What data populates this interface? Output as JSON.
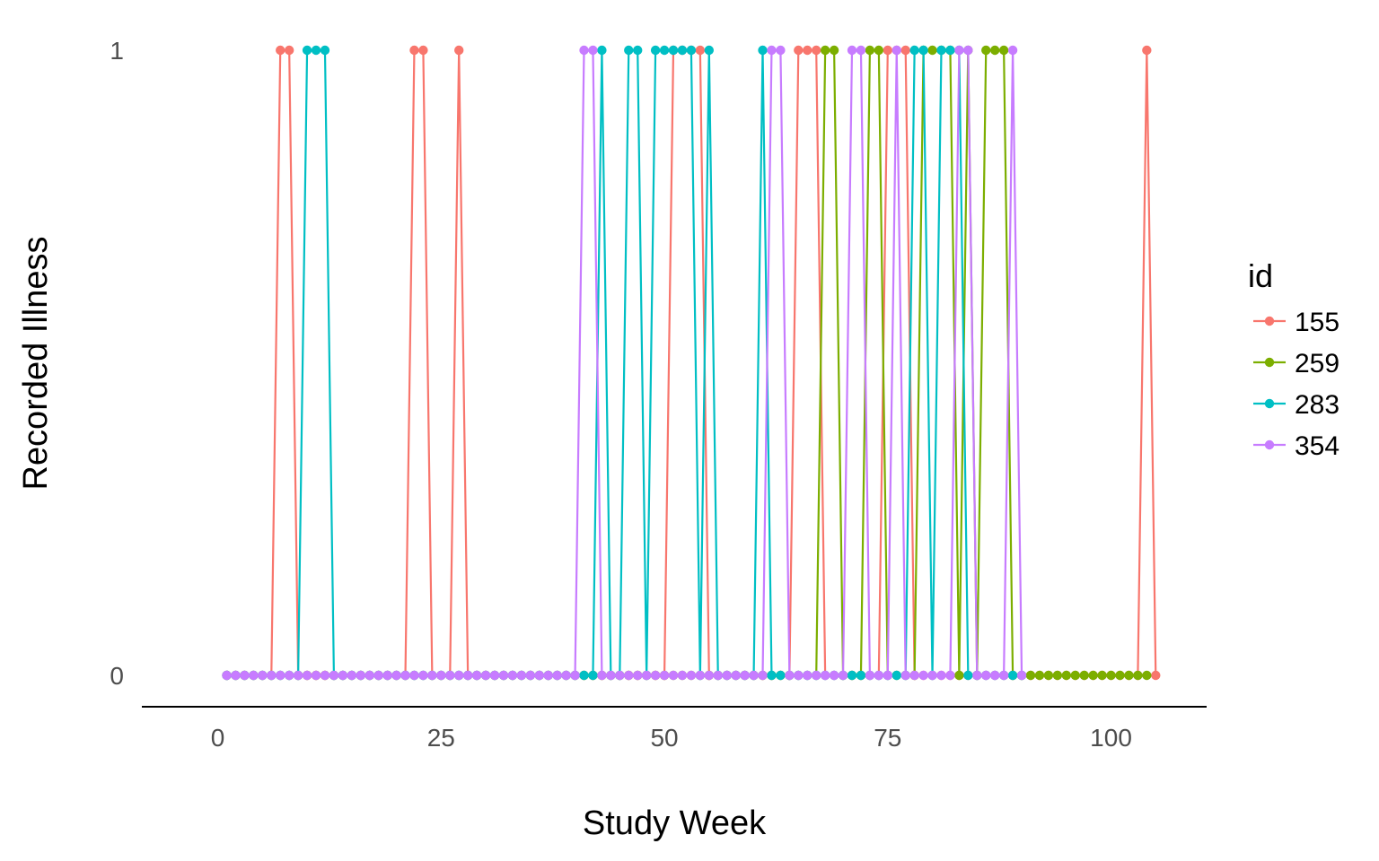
{
  "chart_data": {
    "type": "line",
    "title": "",
    "xlabel": "Study Week",
    "ylabel": "Recorded Illness",
    "xlim": [
      -8.5,
      110.7
    ],
    "ylim": [
      -0.05,
      1.0
    ],
    "x_ticks": [
      0,
      25,
      50,
      75,
      100
    ],
    "y_ticks": [
      0,
      1
    ],
    "grid": false,
    "legend": {
      "title": "id",
      "placement": "right"
    },
    "weeks_start": 1,
    "series": [
      {
        "name": "155",
        "color": "#F8766D",
        "values": [
          0,
          0,
          0,
          0,
          0,
          0,
          1,
          1,
          0,
          0,
          0,
          0,
          0,
          0,
          0,
          0,
          0,
          0,
          0,
          0,
          0,
          1,
          1,
          0,
          0,
          0,
          1,
          0,
          0,
          0,
          0,
          0,
          0,
          0,
          0,
          0,
          0,
          0,
          0,
          0,
          0,
          0,
          0,
          0,
          0,
          0,
          0,
          0,
          0,
          0,
          1,
          1,
          1,
          1,
          0,
          0,
          0,
          0,
          0,
          0,
          0,
          0,
          0,
          0,
          1,
          1,
          1,
          0,
          0,
          0,
          0,
          0,
          0,
          0,
          1,
          1,
          1,
          0,
          0,
          0,
          0,
          0,
          0,
          0,
          0,
          0,
          0,
          0,
          0,
          0,
          0,
          0,
          0,
          0,
          0,
          0,
          0,
          0,
          0,
          0,
          0,
          0,
          0,
          1,
          0
        ]
      },
      {
        "name": "259",
        "color": "#7CAE00",
        "values": [
          0,
          0,
          0,
          0,
          0,
          0,
          0,
          0,
          0,
          0,
          0,
          0,
          0,
          0,
          0,
          0,
          0,
          0,
          0,
          0,
          0,
          0,
          0,
          0,
          0,
          0,
          0,
          0,
          0,
          0,
          0,
          0,
          0,
          0,
          0,
          0,
          0,
          0,
          0,
          0,
          0,
          0,
          0,
          0,
          0,
          0,
          0,
          0,
          0,
          0,
          0,
          0,
          0,
          0,
          0,
          0,
          0,
          0,
          0,
          0,
          0,
          0,
          0,
          0,
          0,
          0,
          0,
          1,
          1,
          0,
          0,
          0,
          1,
          1,
          0,
          0,
          0,
          0,
          1,
          1,
          1,
          1,
          0,
          1,
          0,
          1,
          1,
          1,
          0,
          0,
          0,
          0,
          0,
          0,
          0,
          0,
          0,
          0,
          0,
          0,
          0,
          0,
          0,
          0
        ]
      },
      {
        "name": "283",
        "color": "#00BFC4",
        "values": [
          0,
          0,
          0,
          0,
          0,
          0,
          0,
          0,
          0,
          1,
          1,
          1,
          0,
          0,
          0,
          0,
          0,
          0,
          0,
          0,
          0,
          0,
          0,
          0,
          0,
          0,
          0,
          0,
          0,
          0,
          0,
          0,
          0,
          0,
          0,
          0,
          0,
          0,
          0,
          0,
          0,
          0,
          1,
          0,
          0,
          1,
          1,
          0,
          1,
          1,
          1,
          1,
          1,
          0,
          1,
          0,
          0,
          0,
          0,
          0,
          1,
          0,
          0,
          0,
          0,
          0,
          0,
          0,
          0,
          0,
          0,
          0,
          0,
          0,
          0,
          0,
          0,
          1,
          1,
          0,
          1,
          1,
          1,
          0,
          0,
          0,
          0,
          0,
          0,
          0
        ]
      },
      {
        "name": "354",
        "color": "#C77CFF",
        "values": [
          0,
          0,
          0,
          0,
          0,
          0,
          0,
          0,
          0,
          0,
          0,
          0,
          0,
          0,
          0,
          0,
          0,
          0,
          0,
          0,
          0,
          0,
          0,
          0,
          0,
          0,
          0,
          0,
          0,
          0,
          0,
          0,
          0,
          0,
          0,
          0,
          0,
          0,
          0,
          0,
          1,
          1,
          0,
          0,
          0,
          0,
          0,
          0,
          0,
          0,
          0,
          0,
          0,
          0,
          0,
          0,
          0,
          0,
          0,
          0,
          0,
          1,
          1,
          0,
          0,
          0,
          0,
          0,
          0,
          0,
          1,
          1,
          0,
          0,
          0,
          1,
          0,
          0,
          0,
          0,
          0,
          0,
          1,
          1,
          0,
          0,
          0,
          0,
          1,
          0
        ]
      }
    ]
  }
}
